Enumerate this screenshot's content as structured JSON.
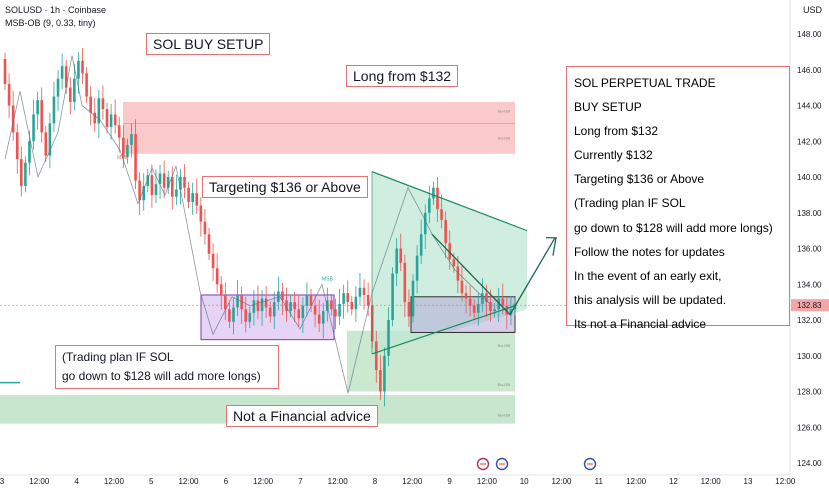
{
  "header": {
    "symbol": "SOLUSD · 1h · Coinbase",
    "indicator": "MSB-OB (9, 0.33, tiny)",
    "currency": "USD"
  },
  "chart_data": {
    "type": "candlestick",
    "title": "SOL BUY SETUP",
    "y_axis": {
      "ticks": [
        124.0,
        126.0,
        128.0,
        130.0,
        132.0,
        134.0,
        136.0,
        138.0,
        140.0,
        142.0,
        144.0,
        146.0,
        148.0
      ],
      "range": [
        123.3,
        149.6
      ],
      "current_price": "132.83"
    },
    "x_axis": {
      "ticks": [
        "3",
        "12:00",
        "4",
        "12:00",
        "5",
        "12:00",
        "6",
        "12:00",
        "7",
        "12:00",
        "8",
        "12:00",
        "9",
        "12:00",
        "10",
        "12:00",
        "11",
        "12:00",
        "12",
        "12:00",
        "13",
        "12:00"
      ]
    },
    "close_prices": [
      145.2,
      144.0,
      142.5,
      141.0,
      139.5,
      140.8,
      142.0,
      143.5,
      144.3,
      142.5,
      141.2,
      143.0,
      144.5,
      145.5,
      146.2,
      145.0,
      144.2,
      145.5,
      146.5,
      145.8,
      144.5,
      143.6,
      143.0,
      144.4,
      143.8,
      142.8,
      143.5,
      142.9,
      142.2,
      141.1,
      141.8,
      142.4,
      139.8,
      138.7,
      139.5,
      140.1,
      139.0,
      139.6,
      140.2,
      139.4,
      140.0,
      138.9,
      139.3,
      140.0,
      139.4,
      138.6,
      139.1,
      138.4,
      137.5,
      136.8,
      135.7,
      134.9,
      134.0,
      133.4,
      132.6,
      131.9,
      132.7,
      133.4,
      132.6,
      131.9,
      132.4,
      133.1,
      132.5,
      133.2,
      132.7,
      132.2,
      133.0,
      133.6,
      133.1,
      132.5,
      133.0,
      132.6,
      132.1,
      132.8,
      133.4,
      132.8,
      132.3,
      131.8,
      132.5,
      133.1,
      132.6,
      132.2,
      132.9,
      133.5,
      133.0,
      132.6,
      133.3,
      133.8,
      133.4,
      132.8,
      130.8,
      129.2,
      128.0,
      130.0,
      132.0,
      134.6,
      136.0,
      135.2,
      133.0,
      132.2,
      134.2,
      135.6,
      136.8,
      138.0,
      138.8,
      139.4,
      138.2,
      137.6,
      136.3,
      135.4,
      135.0,
      134.2,
      133.5,
      133.2,
      132.8,
      132.4,
      132.9,
      133.5,
      133.0,
      132.5,
      132.6,
      133.2,
      132.8,
      132.3,
      132.6,
      132.9
    ],
    "lines": {
      "ob_resistance": "",
      "ob_support": ""
    },
    "ob_markers": [
      "Bu-OB",
      "Bu-OB",
      "Bu-OB",
      "Bu-OB",
      "Bu-OB"
    ],
    "msb_markers": [
      "MSB",
      "MSB"
    ],
    "annotations": {
      "title_box": "SOL BUY SETUP",
      "long_box": "Long from $132",
      "target_box": "Targeting $136 or Above",
      "plan_line1": "(Trading plan IF SOL",
      "plan_line2": "go down to $128 will add more longs)",
      "advice_box": "Not a Financial advice"
    },
    "notes": [
      "SOL PERPETUAL TRADE",
      "BUY SETUP",
      "Long from $132",
      "Currently $132",
      "Targeting $136 or Above",
      "(Trading plan IF SOL",
      "go down to $128 will add more longs)",
      "Follow the notes for updates",
      "In the event of an early exit,",
      "this analysis will be updated.",
      "Its not a Financial advice"
    ],
    "colors": {
      "bull": "#26a69a",
      "bear": "#ef5350",
      "resistance_zone": "#f8b4b4",
      "support_zone": "#b9e0c0",
      "range_box": "#d6b8f0",
      "target_zone": "#bfe8d6",
      "price_tag": "#f4a6a6",
      "arrow": "#1b6b4f"
    }
  }
}
